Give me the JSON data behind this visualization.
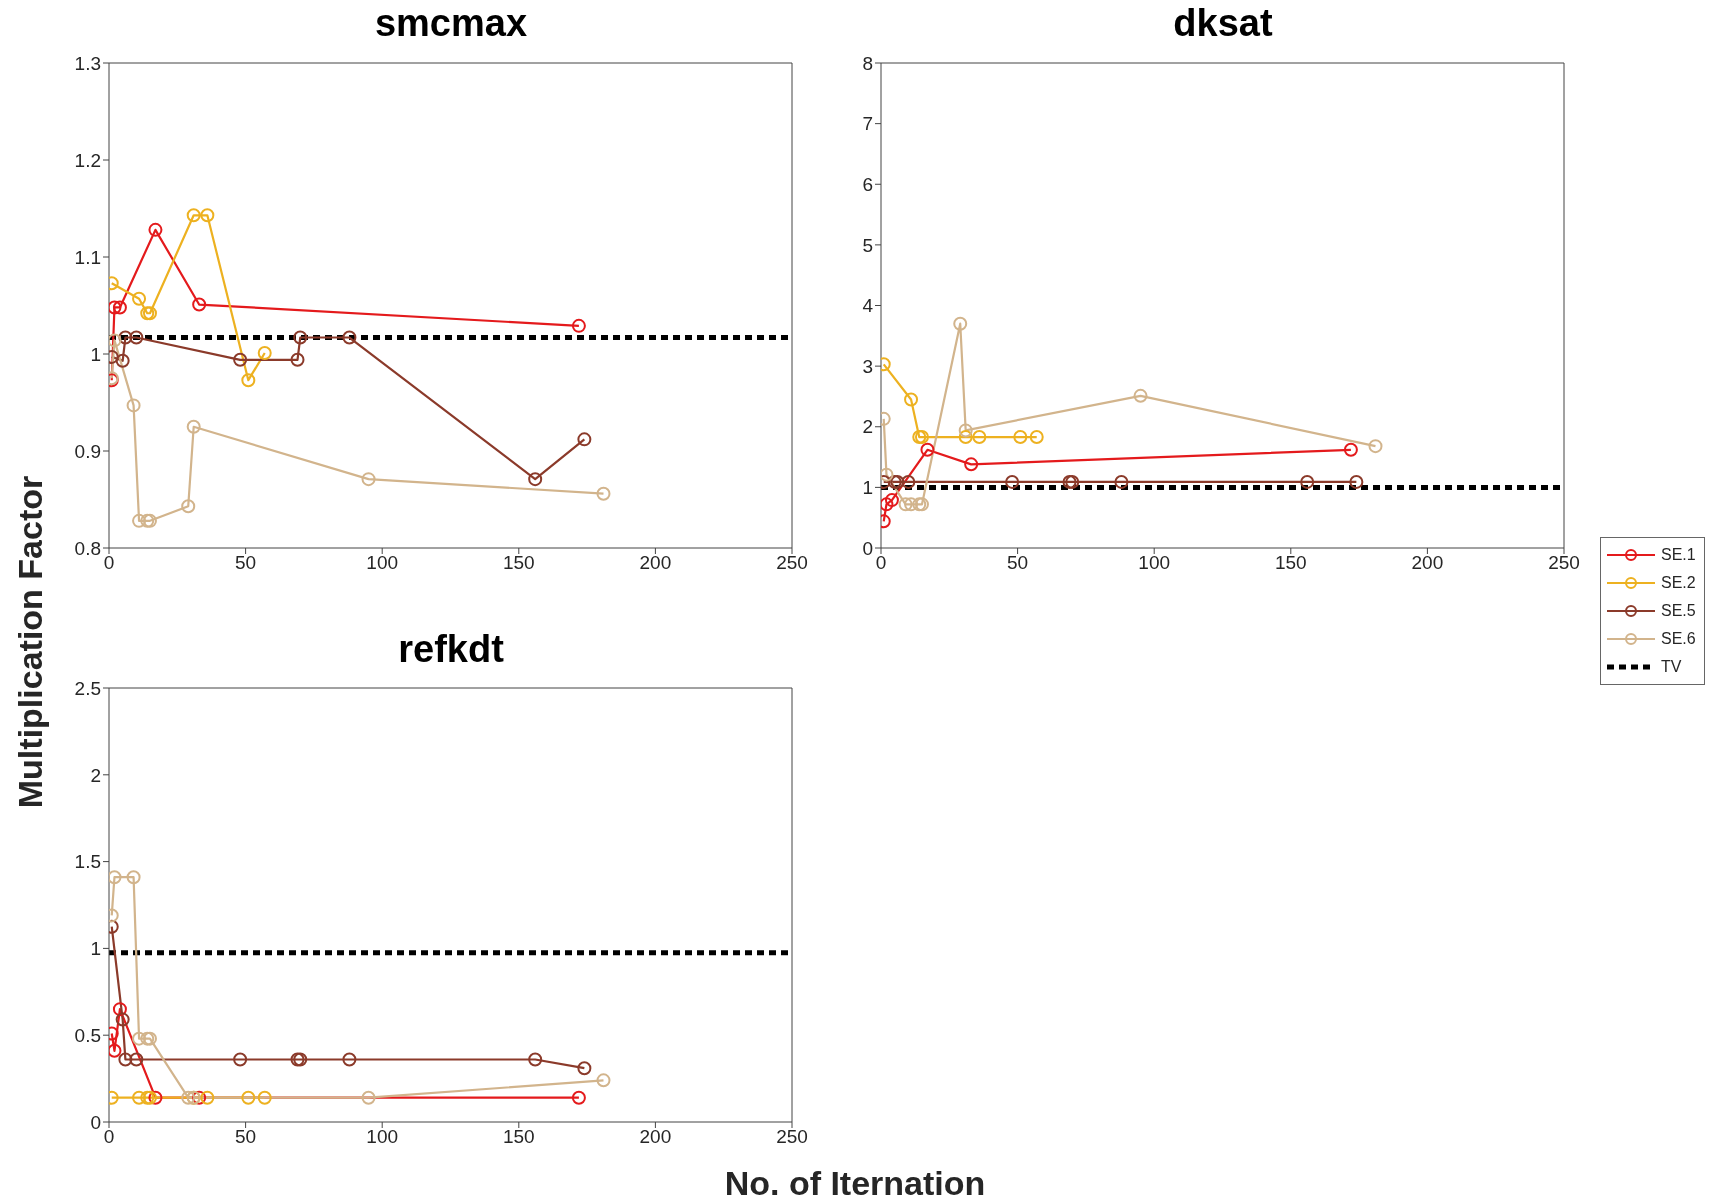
{
  "chart_data": [
    {
      "type": "line",
      "title": "smcmax",
      "ylabel": "Multiplication Factor",
      "xlim": [
        0,
        250
      ],
      "xticks": [
        0,
        50,
        100,
        150,
        200,
        250
      ],
      "ylim": [
        0.8,
        1.3
      ],
      "yticks": [
        0.8,
        0.9,
        1,
        1.1,
        1.2,
        1.3
      ],
      "marker": "circle",
      "ref_lines": [
        {
          "axis": "y",
          "value": 1.017,
          "color": "#000000",
          "line_style": "dashed"
        }
      ],
      "series": [
        {
          "color": "#e41a1c",
          "x": [
            1,
            2,
            4,
            17,
            33,
            172
          ],
          "values": [
            0.973,
            1.048,
            1.048,
            1.128,
            1.051,
            1.029
          ]
        },
        {
          "color": "#edb120",
          "x": [
            1,
            11,
            14,
            15,
            31,
            36,
            51,
            57
          ],
          "values": [
            1.073,
            1.057,
            1.042,
            1.042,
            1.143,
            1.143,
            0.973,
            1.001
          ]
        },
        {
          "color": "#8b3a2a",
          "x": [
            1,
            5,
            6,
            10,
            48,
            69,
            70,
            88,
            156,
            174
          ],
          "values": [
            0.997,
            0.993,
            1.017,
            1.017,
            0.994,
            0.994,
            1.017,
            1.017,
            0.871,
            0.912
          ]
        },
        {
          "color": "#d2b48c",
          "x": [
            1,
            2,
            9,
            11,
            14,
            15,
            29,
            31,
            95,
            181
          ],
          "values": [
            0.975,
            1.014,
            0.947,
            0.828,
            0.828,
            0.828,
            0.843,
            0.925,
            0.871,
            0.856
          ]
        }
      ]
    },
    {
      "type": "line",
      "title": "dksat",
      "xlim": [
        0,
        250
      ],
      "xticks": [
        0,
        50,
        100,
        150,
        200,
        250
      ],
      "ylim": [
        0,
        8
      ],
      "yticks": [
        0,
        1,
        2,
        3,
        4,
        5,
        6,
        7,
        8
      ],
      "marker": "circle",
      "legend": "right",
      "ref_lines": [
        {
          "axis": "y",
          "value": 1,
          "label": "TV",
          "color": "#000000",
          "line_style": "dashed"
        }
      ],
      "series": [
        {
          "name": "SE.1",
          "color": "#e41a1c",
          "x": [
            1,
            2,
            4,
            17,
            33,
            172
          ],
          "values": [
            0.44,
            0.72,
            0.79,
            1.62,
            1.38,
            1.62
          ]
        },
        {
          "name": "SE.2",
          "color": "#edb120",
          "x": [
            1,
            11,
            14,
            15,
            31,
            36,
            51,
            57
          ],
          "values": [
            3.03,
            2.45,
            1.83,
            1.83,
            1.83,
            1.83,
            1.83,
            1.83
          ]
        },
        {
          "name": "SE.5",
          "color": "#8b3a2a",
          "x": [
            1,
            5,
            6,
            10,
            48,
            69,
            70,
            88,
            156,
            174
          ],
          "values": [
            1.09,
            1.09,
            1.09,
            1.09,
            1.09,
            1.09,
            1.09,
            1.09,
            1.09,
            1.09
          ]
        },
        {
          "name": "SE.6",
          "color": "#d2b48c",
          "x": [
            1,
            2,
            9,
            11,
            14,
            15,
            29,
            31,
            95,
            181
          ],
          "values": [
            2.13,
            1.21,
            0.72,
            0.72,
            0.72,
            0.72,
            3.7,
            1.94,
            2.51,
            1.68
          ]
        }
      ]
    },
    {
      "type": "line",
      "title": "refkdt",
      "xlabel": "No. of Iternation",
      "xlim": [
        0,
        250
      ],
      "xticks": [
        0,
        50,
        100,
        150,
        200,
        250
      ],
      "ylim": [
        0,
        2.5
      ],
      "yticks": [
        0,
        0.5,
        1,
        1.5,
        2,
        2.5
      ],
      "marker": "circle",
      "ref_lines": [
        {
          "axis": "y",
          "value": 0.975,
          "color": "#000000",
          "line_style": "dashed"
        }
      ],
      "series": [
        {
          "color": "#e41a1c",
          "x": [
            1,
            2,
            4,
            17,
            33,
            172
          ],
          "values": [
            0.51,
            0.41,
            0.65,
            0.14,
            0.14,
            0.14
          ]
        },
        {
          "color": "#edb120",
          "x": [
            1,
            11,
            14,
            15,
            31,
            36,
            51,
            57
          ],
          "values": [
            0.14,
            0.14,
            0.14,
            0.14,
            0.14,
            0.14,
            0.14,
            0.14
          ]
        },
        {
          "color": "#8b3a2a",
          "x": [
            1,
            5,
            6,
            10,
            48,
            69,
            70,
            88,
            156,
            174
          ],
          "values": [
            1.125,
            0.59,
            0.36,
            0.36,
            0.36,
            0.36,
            0.36,
            0.36,
            0.36,
            0.31
          ]
        },
        {
          "color": "#d2b48c",
          "x": [
            1,
            2,
            9,
            11,
            14,
            15,
            29,
            31,
            95,
            181
          ],
          "values": [
            1.19,
            1.41,
            1.41,
            0.48,
            0.48,
            0.48,
            0.14,
            0.14,
            0.14,
            0.24
          ]
        }
      ]
    }
  ]
}
